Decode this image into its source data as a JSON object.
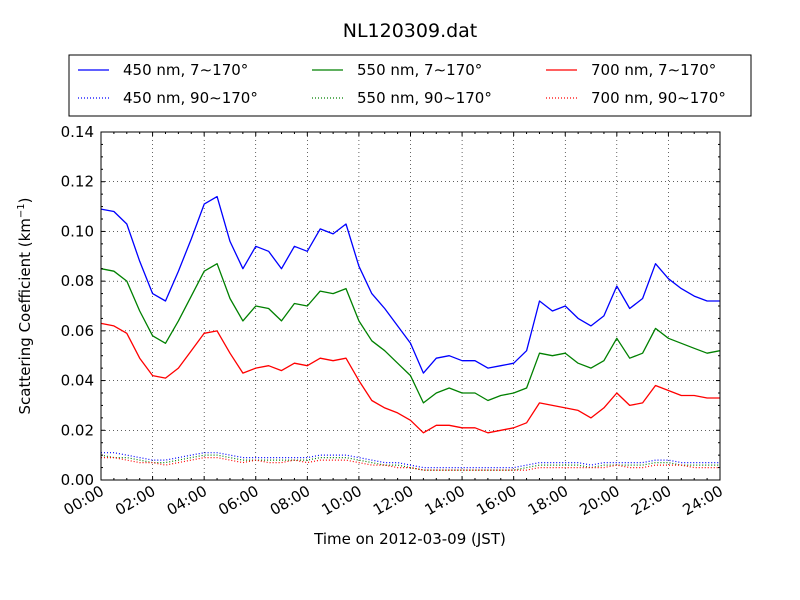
{
  "chart_data": {
    "type": "line",
    "title": "NL120309.dat",
    "xlabel": "Time on 2012-03-09 (JST)",
    "ylabel": "Scattering Coefficient (km",
    "ylabel_sup": "−1",
    "ylabel_end": ")",
    "xlim": [
      "00:00",
      "24:00"
    ],
    "ylim": [
      0.0,
      0.14
    ],
    "grid": true,
    "legend_position": "top",
    "x_ticks": [
      "00:00",
      "02:00",
      "04:00",
      "06:00",
      "08:00",
      "10:00",
      "12:00",
      "14:00",
      "16:00",
      "18:00",
      "20:00",
      "22:00",
      "24:00"
    ],
    "y_ticks": [
      "0.00",
      "0.02",
      "0.04",
      "0.06",
      "0.08",
      "0.10",
      "0.12",
      "0.14"
    ],
    "x": [
      "00:00",
      "00:30",
      "01:00",
      "01:30",
      "02:00",
      "02:30",
      "03:00",
      "03:30",
      "04:00",
      "04:30",
      "05:00",
      "05:30",
      "06:00",
      "06:30",
      "07:00",
      "07:30",
      "08:00",
      "08:30",
      "09:00",
      "09:30",
      "10:00",
      "10:30",
      "11:00",
      "11:30",
      "12:00",
      "12:30",
      "13:00",
      "13:30",
      "14:00",
      "14:30",
      "15:00",
      "15:30",
      "16:00",
      "16:30",
      "17:00",
      "17:30",
      "18:00",
      "18:30",
      "19:00",
      "19:30",
      "20:00",
      "20:30",
      "21:00",
      "21:30",
      "22:00",
      "22:30",
      "23:00",
      "23:30",
      "24:00"
    ],
    "series": [
      {
        "name": "450 nm, 7∼170°",
        "color": "#0000ff",
        "style": "solid",
        "values": [
          0.109,
          0.108,
          0.103,
          0.088,
          0.075,
          0.072,
          0.084,
          0.097,
          0.111,
          0.114,
          0.096,
          0.085,
          0.094,
          0.092,
          0.085,
          0.094,
          0.092,
          0.101,
          0.099,
          0.103,
          0.086,
          0.075,
          0.069,
          0.062,
          0.055,
          0.043,
          0.049,
          0.05,
          0.048,
          0.048,
          0.045,
          0.046,
          0.047,
          0.052,
          0.072,
          0.068,
          0.07,
          0.065,
          0.062,
          0.066,
          0.078,
          0.069,
          0.073,
          0.087,
          0.081,
          0.077,
          0.074,
          0.072,
          0.072
        ]
      },
      {
        "name": "550 nm, 7∼170°",
        "color": "#008000",
        "style": "solid",
        "values": [
          0.085,
          0.084,
          0.08,
          0.068,
          0.058,
          0.055,
          0.064,
          0.074,
          0.084,
          0.087,
          0.073,
          0.064,
          0.07,
          0.069,
          0.064,
          0.071,
          0.07,
          0.076,
          0.075,
          0.077,
          0.064,
          0.056,
          0.052,
          0.047,
          0.042,
          0.031,
          0.035,
          0.037,
          0.035,
          0.035,
          0.032,
          0.034,
          0.035,
          0.037,
          0.051,
          0.05,
          0.051,
          0.047,
          0.045,
          0.048,
          0.057,
          0.049,
          0.051,
          0.061,
          0.057,
          0.055,
          0.053,
          0.051,
          0.052
        ]
      },
      {
        "name": "700 nm, 7∼170°",
        "color": "#ff0000",
        "style": "solid",
        "values": [
          0.063,
          0.062,
          0.059,
          0.049,
          0.042,
          0.041,
          0.045,
          0.052,
          0.059,
          0.06,
          0.051,
          0.043,
          0.045,
          0.046,
          0.044,
          0.047,
          0.046,
          0.049,
          0.048,
          0.049,
          0.04,
          0.032,
          0.029,
          0.027,
          0.024,
          0.019,
          0.022,
          0.022,
          0.021,
          0.021,
          0.019,
          0.02,
          0.021,
          0.023,
          0.031,
          0.03,
          0.029,
          0.028,
          0.025,
          0.029,
          0.035,
          0.03,
          0.031,
          0.038,
          0.036,
          0.034,
          0.034,
          0.033,
          0.033
        ]
      },
      {
        "name": "450 nm, 90∼170°",
        "color": "#0000ff",
        "style": "dotted",
        "values": [
          0.011,
          0.011,
          0.01,
          0.009,
          0.008,
          0.008,
          0.009,
          0.01,
          0.011,
          0.011,
          0.01,
          0.009,
          0.009,
          0.009,
          0.009,
          0.009,
          0.009,
          0.01,
          0.01,
          0.01,
          0.009,
          0.008,
          0.007,
          0.007,
          0.006,
          0.005,
          0.005,
          0.005,
          0.005,
          0.005,
          0.005,
          0.005,
          0.005,
          0.006,
          0.007,
          0.007,
          0.007,
          0.007,
          0.006,
          0.007,
          0.007,
          0.007,
          0.007,
          0.008,
          0.008,
          0.007,
          0.007,
          0.007,
          0.007
        ]
      },
      {
        "name": "550 nm, 90∼170°",
        "color": "#008000",
        "style": "dotted",
        "values": [
          0.01,
          0.009,
          0.009,
          0.008,
          0.007,
          0.007,
          0.008,
          0.009,
          0.01,
          0.01,
          0.009,
          0.008,
          0.008,
          0.008,
          0.008,
          0.008,
          0.008,
          0.009,
          0.009,
          0.009,
          0.008,
          0.007,
          0.006,
          0.006,
          0.005,
          0.004,
          0.004,
          0.004,
          0.004,
          0.004,
          0.004,
          0.004,
          0.004,
          0.005,
          0.006,
          0.006,
          0.006,
          0.006,
          0.005,
          0.006,
          0.006,
          0.006,
          0.006,
          0.007,
          0.007,
          0.006,
          0.006,
          0.006,
          0.006
        ]
      },
      {
        "name": "700 nm, 90∼170°",
        "color": "#ff0000",
        "style": "dotted",
        "values": [
          0.009,
          0.009,
          0.008,
          0.007,
          0.007,
          0.006,
          0.007,
          0.008,
          0.009,
          0.009,
          0.008,
          0.007,
          0.008,
          0.007,
          0.007,
          0.008,
          0.007,
          0.008,
          0.008,
          0.008,
          0.007,
          0.006,
          0.006,
          0.005,
          0.005,
          0.004,
          0.004,
          0.004,
          0.004,
          0.004,
          0.004,
          0.004,
          0.004,
          0.004,
          0.005,
          0.005,
          0.005,
          0.005,
          0.005,
          0.005,
          0.006,
          0.005,
          0.005,
          0.006,
          0.006,
          0.006,
          0.005,
          0.005,
          0.005
        ]
      }
    ]
  }
}
